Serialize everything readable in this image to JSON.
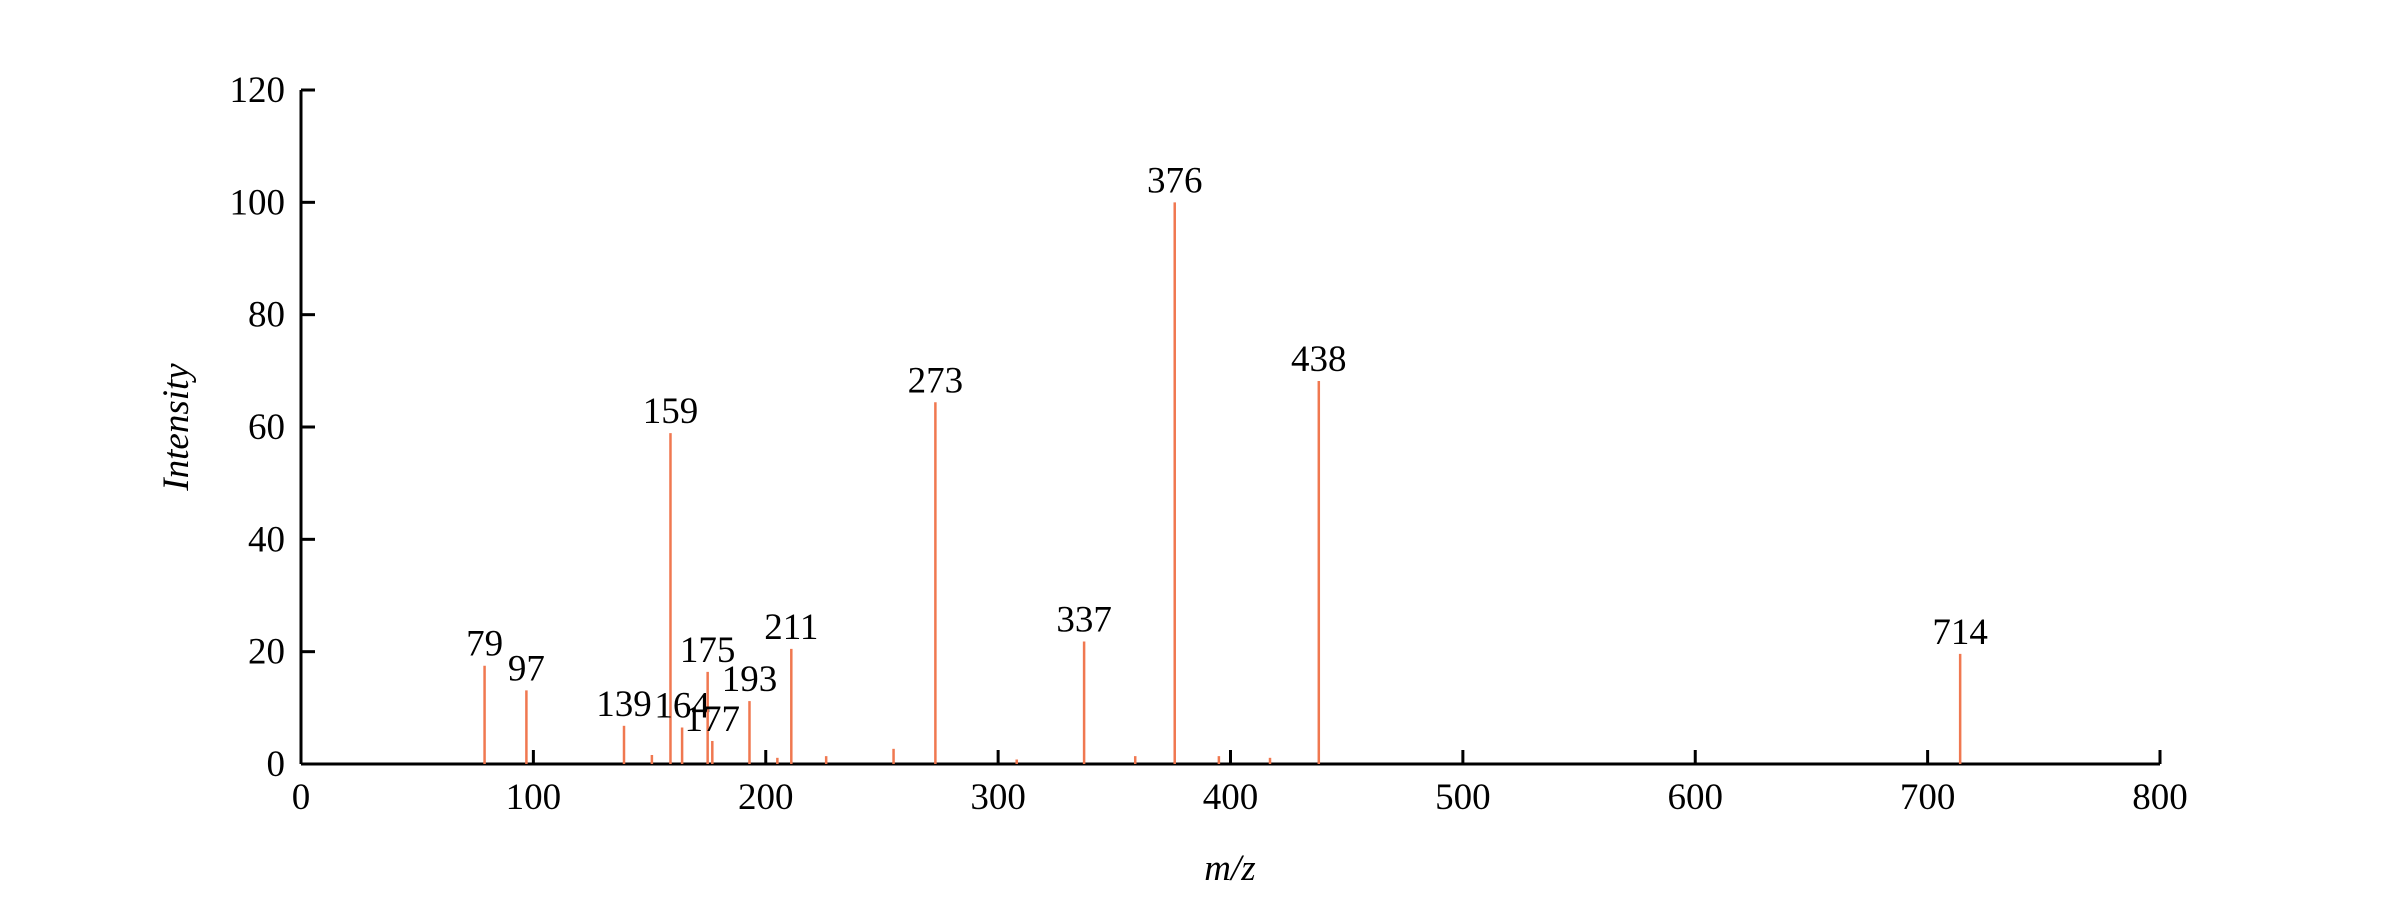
{
  "chart_data": {
    "type": "stem",
    "x_label": "m/z",
    "y_label": "Intensity",
    "x": [
      79,
      97,
      139,
      159,
      164,
      175,
      177,
      193,
      211,
      273,
      337,
      376,
      438,
      714
    ],
    "values": [
      17.5,
      13.1,
      6.8,
      58.9,
      6.5,
      16.4,
      4.1,
      11.2,
      20.5,
      64.4,
      21.8,
      100,
      68.2,
      19.6
    ],
    "minor_x": [
      151,
      205,
      226,
      255,
      308,
      359,
      395,
      417
    ],
    "minor_values": [
      1.6,
      1.1,
      1.4,
      2.7,
      0.8,
      1.4,
      1.4,
      1.1
    ],
    "color": "#f07850",
    "xlim": [
      0,
      800
    ],
    "xticks": [
      0,
      100,
      200,
      300,
      400,
      500,
      600,
      700,
      800
    ],
    "ylim": [
      0,
      120
    ],
    "yticks": [
      0,
      20,
      40,
      60,
      80,
      100,
      120
    ]
  }
}
